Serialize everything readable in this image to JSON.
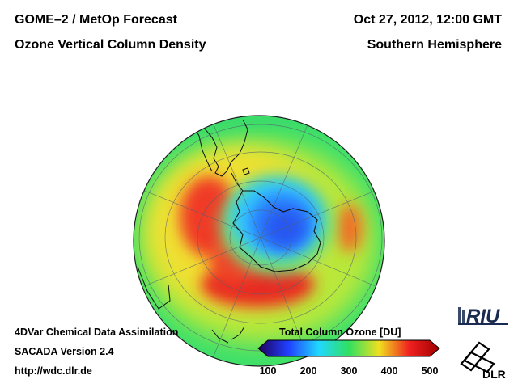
{
  "header": {
    "title_line1": "GOME–2 / MetOp Forecast",
    "title_line2": "Ozone Vertical Column Density",
    "date": "Oct 27, 2012, 12:00 GMT",
    "region": "Southern Hemisphere"
  },
  "footer": {
    "line1": "4DVar Chemical Data Assimilation",
    "line2": "SACADA Version 2.4",
    "line3": "http://wdc.dlr.de"
  },
  "legend": {
    "title": "Total Column Ozone [DU]",
    "ticks": [
      "100",
      "200",
      "300",
      "400",
      "500"
    ],
    "min": 100,
    "max": 500,
    "colors": [
      "#20005a",
      "#2040ff",
      "#20d8ff",
      "#30e060",
      "#f0e020",
      "#f02020",
      "#a00000"
    ]
  },
  "logos": {
    "riu": "RIU",
    "dlr": "DLR"
  },
  "chart_data": {
    "type": "heatmap",
    "title": "Ozone Vertical Column Density",
    "projection": "orthographic, south pole view",
    "variable": "Total Column Ozone",
    "unit": "DU",
    "range": [
      100,
      500
    ],
    "features": [
      {
        "name": "ozone hole over Antarctica",
        "approx_value_DU": 210
      },
      {
        "name": "collar maximum south of Australia / Pacific",
        "approx_value_DU": 430
      },
      {
        "name": "high ozone near South America (Pacific side)",
        "approx_value_DU": 420
      },
      {
        "name": "background mid latitudes",
        "approx_value_DU": 320
      }
    ]
  }
}
